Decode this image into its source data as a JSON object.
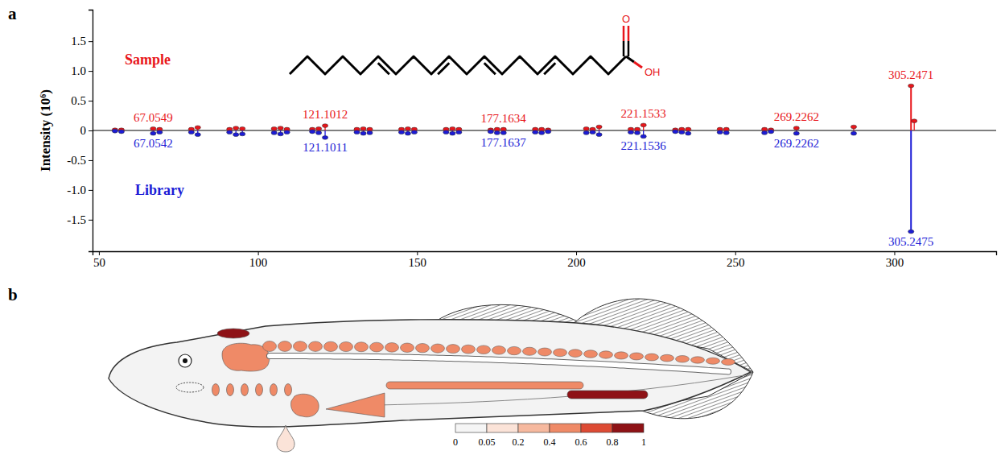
{
  "chart_data": [
    {
      "type": "mirror_spectrum",
      "panel_label": "a",
      "ylabel": "Intensity (10⁶)",
      "annotations": [
        "O",
        "OH"
      ],
      "xlim": [
        48,
        332
      ],
      "xticks": [
        50,
        100,
        150,
        200,
        250,
        300
      ],
      "ylim": [
        -2.03,
        2.03
      ],
      "yticks": [
        -1.5,
        {
          "value": -1,
          "label": "-1.0"
        },
        -0.5,
        0,
        0.5,
        {
          "value": 1,
          "label": "1.0"
        },
        1.5
      ],
      "series": [
        {
          "name": "Sample",
          "color": "#e8161b",
          "x": [
            55.0542,
            57.0699,
            67.0549,
            69.0699,
            79.0542,
            81.0699,
            91.0542,
            93.0699,
            95.0855,
            105.0699,
            107.0855,
            109.1012,
            117.0699,
            119.0855,
            121.1012,
            131.0855,
            133.1012,
            135.1168,
            145.1012,
            147.1168,
            149.1325,
            159.1168,
            161.1325,
            163.1481,
            173.1325,
            175.1481,
            177.1634,
            187.1481,
            189.1638,
            191.1794,
            203.1794,
            205.1951,
            207.2107,
            217.1951,
            219.2107,
            221.1533,
            231.1743,
            233.19,
            235.2056,
            245.19,
            247.2056,
            259.2056,
            261.2213,
            269.2262,
            287.2369,
            305.2471,
            306.2504
          ],
          "values": [
            0.01,
            0.01,
            0.03,
            0.02,
            0.02,
            0.05,
            0.02,
            0.04,
            0.03,
            0.03,
            0.04,
            0.02,
            0.02,
            0.03,
            0.08,
            0.02,
            0.03,
            0.02,
            0.02,
            0.03,
            0.02,
            0.02,
            0.03,
            0.02,
            0.01,
            0.02,
            0.02,
            0.02,
            0.02,
            0.01,
            0.03,
            0.02,
            0.06,
            0.02,
            0.02,
            0.09,
            0.01,
            0.02,
            0.02,
            0.02,
            0.02,
            0.02,
            0.01,
            0.04,
            0.06,
            0.75,
            0.16
          ],
          "annotations": [
            {
              "x": 67.0549,
              "text": "67.0549"
            },
            {
              "x": 121.1012,
              "text": "121.1012"
            },
            {
              "x": 177.1634,
              "text": "177.1634"
            },
            {
              "x": 221.1533,
              "text": "221.1533"
            },
            {
              "x": 269.2262,
              "text": "269.2262"
            },
            {
              "x": 305.2471,
              "text": "305.2471"
            }
          ]
        },
        {
          "name": "Library",
          "color": "#1c1cd6",
          "x": [
            55.0542,
            57.0699,
            67.0542,
            69.0699,
            79.0542,
            81.0699,
            91.0542,
            93.0699,
            95.0855,
            105.0699,
            107.0855,
            109.1012,
            117.0699,
            119.0855,
            121.1011,
            131.0855,
            133.1012,
            135.1168,
            145.1012,
            147.1168,
            149.1325,
            159.1168,
            161.1325,
            163.1481,
            173.1325,
            175.1481,
            177.1637,
            187.1481,
            189.1638,
            191.1794,
            203.1794,
            205.1951,
            207.2107,
            217.1951,
            219.2107,
            221.1536,
            231.1743,
            233.19,
            235.2056,
            245.19,
            247.2056,
            259.2056,
            261.2213,
            269.2262,
            287.2369,
            305.2475
          ],
          "values": [
            -0.01,
            -0.02,
            -0.05,
            -0.03,
            -0.03,
            -0.07,
            -0.03,
            -0.07,
            -0.06,
            -0.04,
            -0.06,
            -0.03,
            -0.02,
            -0.04,
            -0.12,
            -0.03,
            -0.05,
            -0.04,
            -0.03,
            -0.05,
            -0.03,
            -0.03,
            -0.05,
            -0.03,
            -0.02,
            -0.04,
            -0.04,
            -0.03,
            -0.04,
            -0.02,
            -0.04,
            -0.03,
            -0.07,
            -0.03,
            -0.04,
            -0.1,
            -0.02,
            -0.03,
            -0.05,
            -0.03,
            -0.04,
            -0.04,
            -0.02,
            -0.05,
            -0.05,
            -1.7
          ],
          "annotations": [
            {
              "x": 67.0542,
              "text": "67.0542"
            },
            {
              "x": 121.1011,
              "text": "121.1011"
            },
            {
              "x": 177.1637,
              "text": "177.1637"
            },
            {
              "x": 221.1536,
              "text": "221.1536"
            },
            {
              "x": 269.2262,
              "text": "269.2262"
            },
            {
              "x": 305.2475,
              "text": "305.2475"
            }
          ]
        }
      ]
    },
    {
      "type": "anatomy_map",
      "panel_label": "b",
      "values": [
        0.85,
        0.02,
        0.45,
        0.45,
        0.4,
        0.5,
        0.45,
        0.5,
        0.9,
        0.1
      ],
      "colorbar": {
        "bins": [
          0,
          0.05,
          0.2,
          0.4,
          0.6,
          0.8,
          1
        ],
        "colors": [
          "#f5f5f5",
          "#fbe3d8",
          "#f6b99f",
          "#ef8a67",
          "#dd4b34",
          "#8e1216"
        ]
      }
    }
  ]
}
